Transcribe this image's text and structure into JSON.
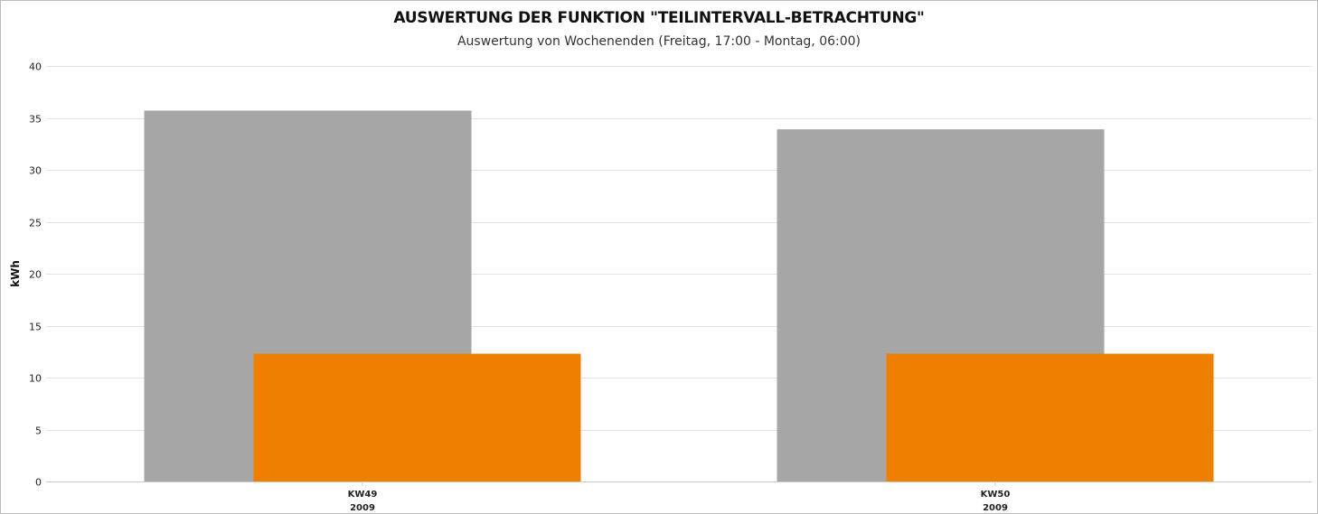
{
  "chart_data": {
    "type": "bar",
    "title": "AUSWERTUNG DER FUNKTION \"TEILINTERVALL-BETRACHTUNG\"",
    "subtitle": "Auswertung von Wochenenden (Freitag, 17:00 - Montag, 06:00)",
    "ylabel": "kWh",
    "xlabel": "",
    "ylim": [
      0,
      40
    ],
    "yticks": [
      0,
      5,
      10,
      15,
      20,
      25,
      30,
      35,
      40
    ],
    "grid": true,
    "legend": "none",
    "categories": [
      {
        "label": "KW49",
        "sublabel": "2009"
      },
      {
        "label": "KW50",
        "sublabel": "2009"
      }
    ],
    "series": [
      {
        "color": "#a6a6a6",
        "values": [
          35.7,
          33.9
        ]
      },
      {
        "color": "#ee7f00",
        "values": [
          12.3,
          12.3
        ]
      }
    ]
  }
}
